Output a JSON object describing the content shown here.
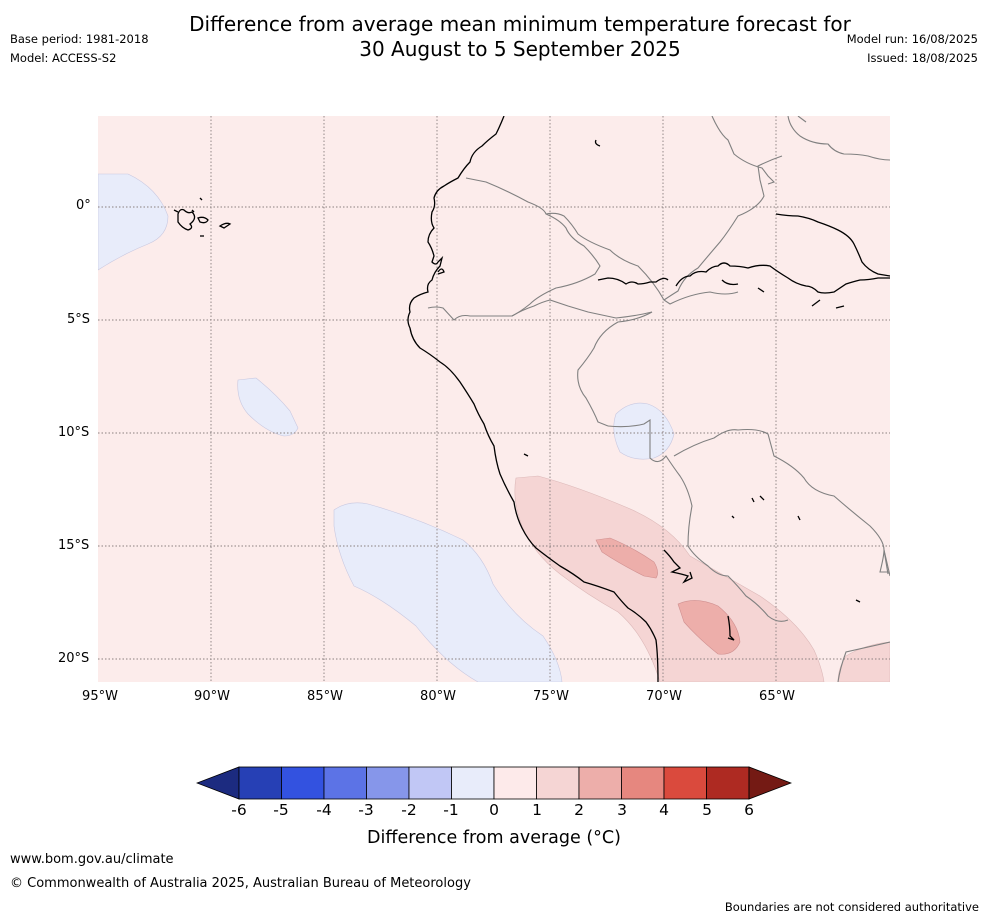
{
  "title": {
    "line1": "Difference from average mean minimum temperature forecast for",
    "line2": "30 August to 5 September 2025"
  },
  "meta": {
    "base_period": "Base period: 1981-2018",
    "model": "Model: ACCESS-S2",
    "model_run": "Model run: 16/08/2025",
    "issued": "Issued: 18/08/2025"
  },
  "map": {
    "lat_labels": [
      "0°",
      "5°S",
      "10°S",
      "15°S",
      "20°S"
    ],
    "lon_labels": [
      "95°W",
      "90°W",
      "85°W",
      "80°W",
      "75°W",
      "70°W",
      "65°W"
    ],
    "lat_range": [
      -21,
      4
    ],
    "lon_range": [
      -95,
      -60.2
    ],
    "colors": {
      "anomaly_0_1": "#fceceb",
      "anomaly_1_2": "#f5d5d4",
      "anomaly_2_3": "#edaeaa",
      "anomaly_minus1_0": "#e8ecfa",
      "coastline": "#000000",
      "borders": "#808080",
      "gridlines": "#8a7f7f"
    }
  },
  "colorbar": {
    "ticks": [
      "-6",
      "-5",
      "-4",
      "-3",
      "-2",
      "-1",
      "0",
      "1",
      "2",
      "3",
      "4",
      "5",
      "6"
    ],
    "colors": [
      "#1c2b80",
      "#2640b5",
      "#3352e0",
      "#5c73e6",
      "#8696ea",
      "#c1c7f5",
      "#e8ecfa",
      "#fdeaea",
      "#f5d5d4",
      "#edaeaa",
      "#e6877f",
      "#da4a3d",
      "#ae2a22",
      "#741a14"
    ],
    "label": "Difference from average (°C)"
  },
  "footer": {
    "website": "www.bom.gov.au/climate",
    "copyright": "© Commonwealth of Australia 2025, Australian Bureau of Meteorology",
    "disclaimer": "Boundaries are not considered authoritative"
  }
}
